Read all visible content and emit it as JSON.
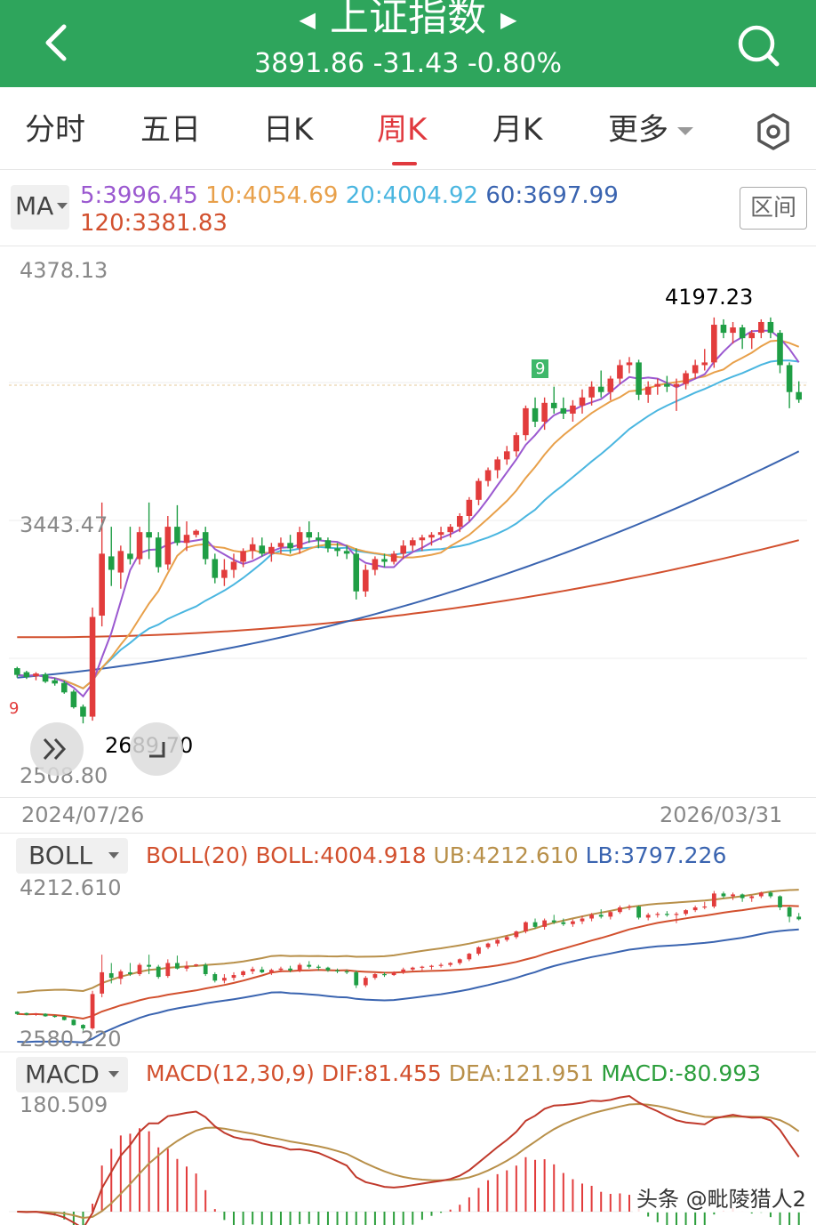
{
  "header": {
    "title": "上证指数",
    "price": "3891.86",
    "change": "-31.43",
    "change_pct": "-0.80%",
    "colors": {
      "bg": "#2ea55c",
      "text": "#ffffff"
    },
    "icons": [
      "back-chevron-icon",
      "prev-arrow-icon",
      "next-arrow-icon",
      "search-icon"
    ]
  },
  "tabs": [
    {
      "label": "分时",
      "active": false
    },
    {
      "label": "五日",
      "active": false
    },
    {
      "label": "日K",
      "active": false
    },
    {
      "label": "周K",
      "active": true
    },
    {
      "label": "月K",
      "active": false
    },
    {
      "label": "更多",
      "active": false
    }
  ],
  "ma": {
    "selector": "MA",
    "range_button": "区间",
    "items": [
      {
        "label": "5:3996.45",
        "color": "#9b59d0"
      },
      {
        "label": "10:4054.69",
        "color": "#e8a04a"
      },
      {
        "label": "20:4004.92",
        "color": "#4ab6e0"
      },
      {
        "label": "60:3697.99",
        "color": "#3a64b0"
      },
      {
        "label": "120:3381.83",
        "color": "#d2502e"
      }
    ]
  },
  "main_chart": {
    "y_top": "4378.13",
    "y_mid": "3443.47",
    "y_bottom": "2508.80",
    "high_label": "4197.23",
    "low_label": "2689.70",
    "date_start": "2024/07/26",
    "date_end": "2026/03/31",
    "seq_top": "9",
    "seq_left": "9"
  },
  "boll": {
    "selector": "BOLL",
    "title": "BOLL(20)",
    "mid": "BOLL:4004.918",
    "ub": "UB:4212.610",
    "lb": "LB:3797.226",
    "y_top": "4212.610",
    "y_bottom": "2580.220"
  },
  "macd": {
    "selector": "MACD",
    "title": "MACD(12,30,9)",
    "dif": "DIF:81.455",
    "dea": "DEA:121.951",
    "macd": "MACD:-80.993",
    "y_top": "180.509"
  },
  "watermark": "头条 @毗陵猎人2",
  "colors": {
    "up": "#e23c3c",
    "down": "#1f9e45",
    "accent": "#e0393e"
  },
  "chart_data": {
    "type": "candlestick",
    "period": "weekly",
    "y_range": [
      2508.8,
      4378.13
    ],
    "x_range": [
      "2024/07/26",
      "2026/03/31"
    ],
    "ohlc": [
      [
        2895,
        2900,
        2860,
        2870
      ],
      [
        2880,
        2885,
        2855,
        2862
      ],
      [
        2865,
        2880,
        2850,
        2875
      ],
      [
        2872,
        2878,
        2840,
        2845
      ],
      [
        2850,
        2858,
        2830,
        2838
      ],
      [
        2840,
        2848,
        2800,
        2805
      ],
      [
        2808,
        2815,
        2745,
        2750
      ],
      [
        2752,
        2760,
        2690,
        2715
      ],
      [
        2715,
        3120,
        2700,
        3085
      ],
      [
        3090,
        3510,
        3050,
        3320
      ],
      [
        3310,
        3420,
        3200,
        3260
      ],
      [
        3250,
        3350,
        3190,
        3330
      ],
      [
        3320,
        3420,
        3280,
        3300
      ],
      [
        3300,
        3420,
        3280,
        3400
      ],
      [
        3400,
        3510,
        3300,
        3380
      ],
      [
        3380,
        3400,
        3250,
        3270
      ],
      [
        3280,
        3460,
        3260,
        3420
      ],
      [
        3420,
        3500,
        3350,
        3360
      ],
      [
        3360,
        3440,
        3330,
        3390
      ],
      [
        3390,
        3410,
        3380,
        3405
      ],
      [
        3400,
        3420,
        3280,
        3300
      ],
      [
        3300,
        3320,
        3210,
        3230
      ],
      [
        3230,
        3300,
        3200,
        3260
      ],
      [
        3260,
        3320,
        3230,
        3290
      ],
      [
        3290,
        3340,
        3270,
        3330
      ],
      [
        3330,
        3380,
        3300,
        3355
      ],
      [
        3350,
        3380,
        3310,
        3320
      ],
      [
        3320,
        3360,
        3290,
        3345
      ],
      [
        3345,
        3380,
        3320,
        3360
      ],
      [
        3360,
        3390,
        3320,
        3340
      ],
      [
        3340,
        3420,
        3320,
        3400
      ],
      [
        3400,
        3440,
        3360,
        3380
      ],
      [
        3380,
        3400,
        3340,
        3370
      ],
      [
        3370,
        3380,
        3325,
        3340
      ],
      [
        3340,
        3360,
        3310,
        3330
      ],
      [
        3330,
        3350,
        3300,
        3320
      ],
      [
        3320,
        3340,
        3150,
        3180
      ],
      [
        3180,
        3280,
        3160,
        3260
      ],
      [
        3260,
        3310,
        3240,
        3300
      ],
      [
        3300,
        3320,
        3270,
        3290
      ],
      [
        3290,
        3330,
        3280,
        3320
      ],
      [
        3320,
        3370,
        3300,
        3350
      ],
      [
        3350,
        3380,
        3330,
        3370
      ],
      [
        3370,
        3390,
        3330,
        3380
      ],
      [
        3380,
        3400,
        3350,
        3390
      ],
      [
        3390,
        3420,
        3370,
        3400
      ],
      [
        3400,
        3430,
        3380,
        3420
      ],
      [
        3420,
        3470,
        3400,
        3460
      ],
      [
        3460,
        3530,
        3440,
        3520
      ],
      [
        3520,
        3600,
        3500,
        3590
      ],
      [
        3590,
        3640,
        3570,
        3630
      ],
      [
        3630,
        3680,
        3600,
        3670
      ],
      [
        3670,
        3720,
        3650,
        3700
      ],
      [
        3700,
        3770,
        3680,
        3760
      ],
      [
        3760,
        3870,
        3740,
        3860
      ],
      [
        3860,
        3900,
        3790,
        3810
      ],
      [
        3810,
        3900,
        3780,
        3880
      ],
      [
        3880,
        3940,
        3840,
        3860
      ],
      [
        3860,
        3900,
        3820,
        3840
      ],
      [
        3840,
        3890,
        3810,
        3870
      ],
      [
        3870,
        3930,
        3840,
        3900
      ],
      [
        3900,
        3960,
        3870,
        3940
      ],
      [
        3940,
        4000,
        3900,
        3920
      ],
      [
        3920,
        3980,
        3890,
        3970
      ],
      [
        3970,
        4040,
        3950,
        4020
      ],
      [
        4020,
        4050,
        3990,
        4030
      ],
      [
        4030,
        4040,
        3890,
        3910
      ],
      [
        3910,
        3960,
        3880,
        3940
      ],
      [
        3940,
        3970,
        3910,
        3950
      ],
      [
        3950,
        3980,
        3920,
        3940
      ],
      [
        3940,
        3970,
        3850,
        3950
      ],
      [
        3950,
        4000,
        3930,
        3990
      ],
      [
        3990,
        4040,
        3970,
        4020
      ],
      [
        4020,
        4080,
        4000,
        4030
      ],
      [
        4030,
        4197,
        4010,
        4170
      ],
      [
        4170,
        4190,
        4120,
        4140
      ],
      [
        4140,
        4180,
        4100,
        4160
      ],
      [
        4160,
        4170,
        4080,
        4120
      ],
      [
        4120,
        4150,
        4080,
        4140
      ],
      [
        4140,
        4190,
        4120,
        4180
      ],
      [
        4180,
        4197,
        4120,
        4140
      ],
      [
        4140,
        4150,
        3990,
        4020
      ],
      [
        4020,
        4030,
        3860,
        3920
      ],
      [
        3920,
        3960,
        3880,
        3891.86
      ]
    ],
    "ma5_last": 3996.45,
    "ma10_last": 4054.69,
    "ma20_last": 4004.92,
    "ma60_last": 3697.99,
    "ma120_last": 3381.83
  }
}
